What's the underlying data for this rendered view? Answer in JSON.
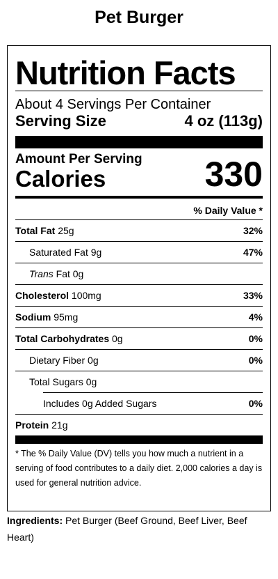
{
  "product_name": "Pet Burger",
  "label": {
    "heading": "Nutrition Facts",
    "servings_per_container": "About 4 Servings Per Container",
    "serving_size_label": "Serving Size",
    "serving_size_value": "4 oz (113g)",
    "amount_per_serving": "Amount Per Serving",
    "calories_label": "Calories",
    "calories_value": "330",
    "daily_value_header": "% Daily Value *",
    "nutrients": [
      {
        "name": "Total Fat",
        "amount": "25g",
        "dv": "32%"
      },
      {
        "name": "Saturated Fat",
        "amount": "9g",
        "dv": "47%"
      },
      {
        "name_italic": "Trans",
        "name": "Fat",
        "amount": "0g",
        "dv": ""
      },
      {
        "name": "Cholesterol",
        "amount": "100mg",
        "dv": "33%"
      },
      {
        "name": "Sodium",
        "amount": "95mg",
        "dv": "4%"
      },
      {
        "name": "Total Carbohydrates",
        "amount": "0g",
        "dv": "0%"
      },
      {
        "name": "Dietary Fiber",
        "amount": "0g",
        "dv": "0%"
      },
      {
        "name": "Total Sugars",
        "amount": "0g",
        "dv": ""
      },
      {
        "name": "Includes 0g Added Sugars",
        "amount": "",
        "dv": "0%"
      },
      {
        "name": "Protein",
        "amount": "21g",
        "dv": ""
      }
    ],
    "footnote": "* The % Daily Value (DV) tells you how much a nutrient in a serving of food contributes to a daily diet. 2,000 calories a day is used for general nutrition advice."
  },
  "ingredients": {
    "label": "Ingredients:",
    "text": "Pet Burger (Beef Ground, Beef Liver, Beef Heart)"
  }
}
